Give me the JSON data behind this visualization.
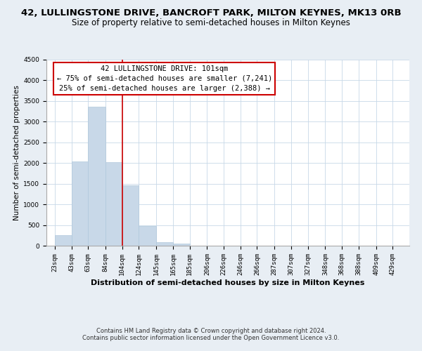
{
  "title": "42, LULLINGSTONE DRIVE, BANCROFT PARK, MILTON KEYNES, MK13 0RB",
  "subtitle": "Size of property relative to semi-detached houses in Milton Keynes",
  "xlabel": "Distribution of semi-detached houses by size in Milton Keynes",
  "ylabel": "Number of semi-detached properties",
  "footer1": "Contains HM Land Registry data © Crown copyright and database right 2024.",
  "footer2": "Contains public sector information licensed under the Open Government Licence v3.0.",
  "bar_left_edges": [
    23,
    43,
    63,
    84,
    104,
    124,
    145,
    165,
    185,
    206,
    226,
    246,
    266,
    287,
    307,
    327,
    348,
    368,
    388,
    409
  ],
  "bar_heights": [
    255,
    2030,
    3360,
    2020,
    1460,
    470,
    90,
    55,
    0,
    0,
    0,
    0,
    0,
    0,
    0,
    0,
    0,
    0,
    0,
    0
  ],
  "bar_color": "#c8d8e8",
  "bar_edge_color": "#b0c8dc",
  "highlight_line_x": 104,
  "highlight_line_color": "#cc0000",
  "ylim": [
    0,
    4500
  ],
  "yticks": [
    0,
    500,
    1000,
    1500,
    2000,
    2500,
    3000,
    3500,
    4000,
    4500
  ],
  "xtick_labels": [
    "23sqm",
    "43sqm",
    "63sqm",
    "84sqm",
    "104sqm",
    "124sqm",
    "145sqm",
    "165sqm",
    "185sqm",
    "206sqm",
    "226sqm",
    "246sqm",
    "266sqm",
    "287sqm",
    "307sqm",
    "327sqm",
    "348sqm",
    "368sqm",
    "388sqm",
    "409sqm",
    "429sqm"
  ],
  "xtick_positions": [
    23,
    43,
    63,
    84,
    104,
    124,
    145,
    165,
    185,
    206,
    226,
    246,
    266,
    287,
    307,
    327,
    348,
    368,
    388,
    409,
    429
  ],
  "annotation_title": "42 LULLINGSTONE DRIVE: 101sqm",
  "annotation_line1": "← 75% of semi-detached houses are smaller (7,241)",
  "annotation_line2": "25% of semi-detached houses are larger (2,388) →",
  "annotation_box_color": "#ffffff",
  "annotation_box_edge": "#cc0000",
  "bg_color": "#e8eef4",
  "plot_bg_color": "#ffffff",
  "grid_color": "#c8d8e8",
  "title_fontsize": 9.5,
  "subtitle_fontsize": 8.5,
  "xlabel_fontsize": 8,
  "ylabel_fontsize": 7.5,
  "tick_fontsize": 6.5,
  "annotation_fontsize": 7.5,
  "footer_fontsize": 6
}
